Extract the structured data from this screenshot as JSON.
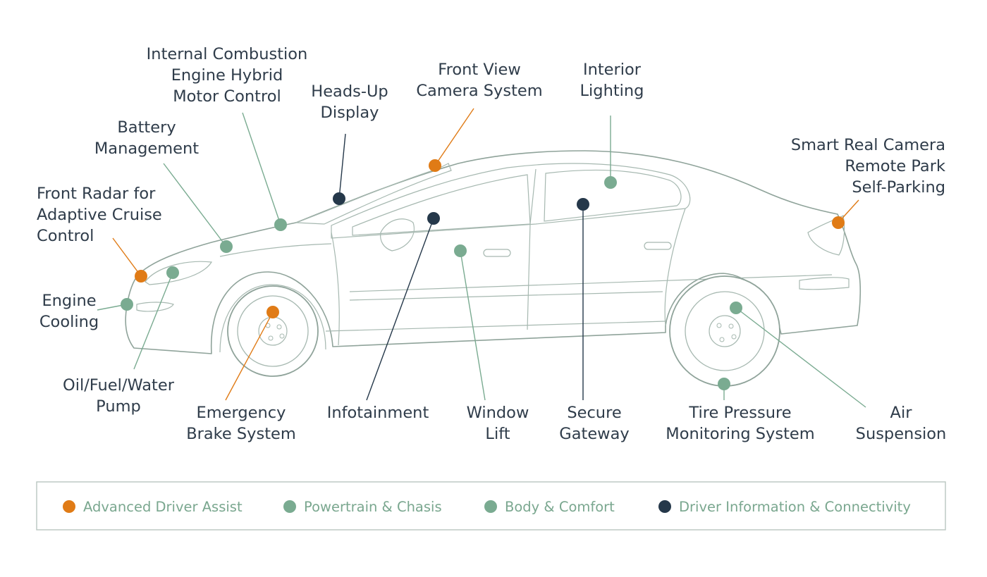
{
  "colors": {
    "advanced_driver_assist": "#e07b16",
    "powertrain_chassis": "#7aab91",
    "body_comfort": "#7aab91",
    "driver_information_connectivity": "#25384a",
    "text": "#2f3c4a",
    "car_outline": "#8fa39a"
  },
  "labels": [
    {
      "id": "internal-combustion",
      "category": "powertrain_chassis",
      "lines": [
        "Internal Combustion",
        "Engine Hybrid",
        "Motor Control"
      ]
    },
    {
      "id": "heads-up-display",
      "category": "driver_information_connectivity",
      "lines": [
        "Heads-Up",
        "Display"
      ]
    },
    {
      "id": "front-view-camera",
      "category": "advanced_driver_assist",
      "lines": [
        "Front View",
        "Camera System"
      ]
    },
    {
      "id": "interior-lighting",
      "category": "body_comfort",
      "lines": [
        "Interior",
        "Lighting"
      ]
    },
    {
      "id": "battery-management",
      "category": "powertrain_chassis",
      "lines": [
        "Battery",
        "Management"
      ]
    },
    {
      "id": "smart-rear-camera",
      "category": "advanced_driver_assist",
      "lines": [
        "Smart Real Camera",
        "Remote Park",
        "Self-Parking"
      ]
    },
    {
      "id": "front-radar",
      "category": "advanced_driver_assist",
      "lines": [
        "Front Radar for",
        "Adaptive Cruise",
        "Control"
      ]
    },
    {
      "id": "engine-cooling",
      "category": "powertrain_chassis",
      "lines": [
        "Engine",
        "Cooling"
      ]
    },
    {
      "id": "oil-fuel-water-pump",
      "category": "powertrain_chassis",
      "lines": [
        "Oil/Fuel/Water",
        "Pump"
      ]
    },
    {
      "id": "emergency-brake",
      "category": "advanced_driver_assist",
      "lines": [
        "Emergency",
        "Brake System"
      ]
    },
    {
      "id": "infotainment",
      "category": "driver_information_connectivity",
      "lines": [
        "Infotainment"
      ]
    },
    {
      "id": "window-lift",
      "category": "body_comfort",
      "lines": [
        "Window",
        "Lift"
      ]
    },
    {
      "id": "secure-gateway",
      "category": "driver_information_connectivity",
      "lines": [
        "Secure",
        "Gateway"
      ]
    },
    {
      "id": "tire-pressure",
      "category": "powertrain_chassis",
      "lines": [
        "Tire Pressure",
        "Monitoring System"
      ]
    },
    {
      "id": "air-suspension",
      "category": "powertrain_chassis",
      "lines": [
        "Air",
        "Suspension"
      ]
    },
    {
      "id": "headlight-lighting",
      "category": "body_comfort",
      "lines": []
    }
  ],
  "legend": [
    {
      "label": "Advanced Driver Assist",
      "color": "#e07b16"
    },
    {
      "label": "Powertrain & Chasis",
      "color": "#7aab91"
    },
    {
      "label": "Body & Comfort",
      "color": "#7aab91"
    },
    {
      "label": "Driver Information & Connectivity",
      "color": "#25384a"
    }
  ]
}
